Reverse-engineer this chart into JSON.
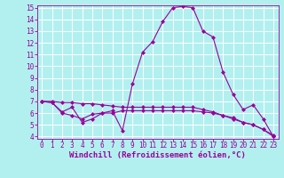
{
  "x": [
    0,
    1,
    2,
    3,
    4,
    5,
    6,
    7,
    8,
    9,
    10,
    11,
    12,
    13,
    14,
    15,
    16,
    17,
    18,
    19,
    20,
    21,
    22,
    23
  ],
  "line1": [
    7.0,
    6.9,
    6.1,
    6.5,
    5.2,
    5.5,
    6.0,
    6.2,
    4.5,
    8.5,
    11.2,
    12.1,
    13.8,
    15.0,
    15.1,
    15.0,
    13.0,
    12.5,
    9.5,
    7.6,
    6.3,
    6.7,
    5.5,
    4.0
  ],
  "line2": [
    7.0,
    7.0,
    6.9,
    6.9,
    6.8,
    6.8,
    6.7,
    6.6,
    6.5,
    6.5,
    6.5,
    6.5,
    6.5,
    6.5,
    6.5,
    6.5,
    6.3,
    6.1,
    5.8,
    5.5,
    5.2,
    5.0,
    4.6,
    4.1
  ],
  "line3": [
    7.0,
    6.9,
    6.0,
    5.8,
    5.5,
    5.9,
    6.0,
    6.0,
    6.2,
    6.2,
    6.2,
    6.2,
    6.2,
    6.2,
    6.2,
    6.2,
    6.1,
    6.0,
    5.8,
    5.6,
    5.2,
    5.0,
    4.6,
    4.0
  ],
  "line_color": "#990099",
  "bg_color": "#b2f0f0",
  "grid_color": "#ffffff",
  "ylim": [
    4,
    15
  ],
  "yticks": [
    4,
    5,
    6,
    7,
    8,
    9,
    10,
    11,
    12,
    13,
    14,
    15
  ],
  "xlim": [
    -0.5,
    23.5
  ],
  "xticks": [
    0,
    1,
    2,
    3,
    4,
    5,
    6,
    7,
    8,
    9,
    10,
    11,
    12,
    13,
    14,
    15,
    16,
    17,
    18,
    19,
    20,
    21,
    22,
    23
  ],
  "xlabel": "Windchill (Refroidissement éolien,°C)",
  "marker": "D",
  "markersize": 2.0,
  "linewidth": 0.8,
  "fontsize_tick": 5.5,
  "fontsize_label": 6.5
}
